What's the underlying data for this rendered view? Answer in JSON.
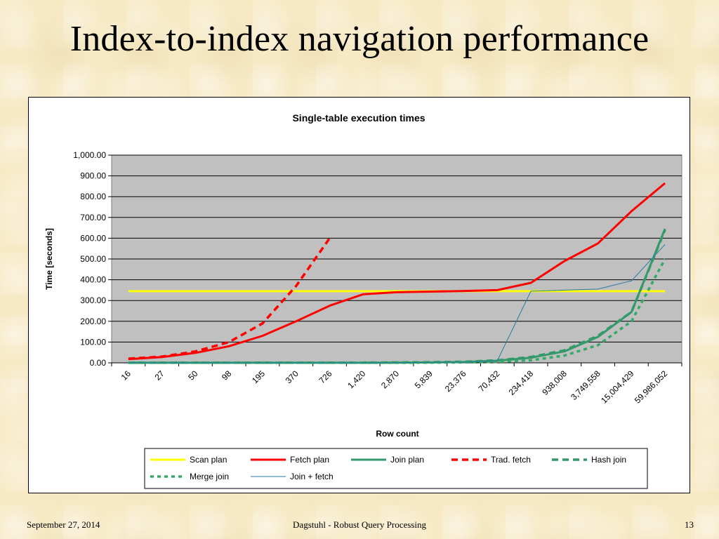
{
  "slide": {
    "title": "Index-to-index navigation performance",
    "footer": {
      "date": "September 27, 2014",
      "center": "Dagstuhl - Robust Query Processing",
      "page": "13"
    }
  },
  "chart_data": {
    "type": "line",
    "title": "Single-table execution times",
    "xlabel": "Row count",
    "ylabel": "Time [seconds]",
    "ylim": [
      0,
      1000
    ],
    "yticks": [
      "0.00",
      "100.00",
      "200.00",
      "300.00",
      "400.00",
      "500.00",
      "600.00",
      "700.00",
      "800.00",
      "900.00",
      "1,000.00"
    ],
    "categories": [
      "16",
      "27",
      "50",
      "98",
      "195",
      "370",
      "726",
      "1,420",
      "2,870",
      "5,839",
      "23,376",
      "70,432",
      "234,418",
      "938,008",
      "3,749,558",
      "15,004,429",
      "59,986,052"
    ],
    "grid": true,
    "legend_position": "bottom",
    "series": [
      {
        "name": "Scan plan",
        "color": "#ffff00",
        "style": "solid",
        "values": [
          345,
          345,
          345,
          345,
          345,
          345,
          345,
          345,
          345,
          345,
          345,
          345,
          345,
          345,
          345,
          345,
          345
        ]
      },
      {
        "name": "Fetch plan",
        "color": "#ff0000",
        "style": "solid",
        "values": [
          18,
          28,
          48,
          80,
          130,
          200,
          275,
          330,
          340,
          343,
          346,
          350,
          385,
          490,
          575,
          730,
          865
        ]
      },
      {
        "name": "Join plan",
        "color": "#33996f",
        "style": "solid",
        "values": [
          0.5,
          0.5,
          0.5,
          0.5,
          0.5,
          0.5,
          0.5,
          0.5,
          1,
          2,
          4,
          10,
          25,
          55,
          125,
          245,
          645
        ]
      },
      {
        "name": "Trad. fetch",
        "color": "#ff0000",
        "style": "dashed",
        "values": [
          20,
          30,
          55,
          100,
          190,
          370,
          600,
          null,
          null,
          null,
          null,
          null,
          null,
          null,
          null,
          null,
          null
        ]
      },
      {
        "name": "Hash join",
        "color": "#339966",
        "style": "dashed",
        "values": [
          1,
          1,
          1,
          1,
          1,
          1,
          1,
          1,
          2,
          3,
          5,
          12,
          28,
          60,
          130,
          245,
          640
        ]
      },
      {
        "name": "Merge join",
        "color": "#33aa66",
        "style": "dotted",
        "values": [
          0.5,
          0.5,
          0.5,
          0.5,
          0.5,
          0.5,
          0.5,
          0.5,
          0.5,
          1,
          2,
          5,
          12,
          35,
          85,
          200,
          500
        ]
      },
      {
        "name": "Join + fetch",
        "color": "#2a7aa0",
        "style": "thin",
        "values": [
          0.5,
          0.5,
          0.5,
          0.5,
          0.5,
          0.5,
          0.5,
          0.5,
          1,
          2,
          3,
          10,
          345,
          350,
          355,
          395,
          570
        ]
      }
    ]
  }
}
